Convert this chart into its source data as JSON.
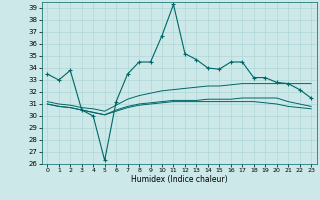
{
  "xlabel": "Humidex (Indice chaleur)",
  "ylabel": "",
  "xlim": [
    -0.5,
    23.5
  ],
  "ylim": [
    26,
    39.5
  ],
  "yticks": [
    26,
    27,
    28,
    29,
    30,
    31,
    32,
    33,
    34,
    35,
    36,
    37,
    38,
    39
  ],
  "xticks": [
    0,
    1,
    2,
    3,
    4,
    5,
    6,
    7,
    8,
    9,
    10,
    11,
    12,
    13,
    14,
    15,
    16,
    17,
    18,
    19,
    20,
    21,
    22,
    23
  ],
  "bg_color": "#cce8e8",
  "line_color": "#006666",
  "grid_color": "#b0d8d8",
  "series": {
    "main": [
      33.5,
      33.0,
      33.8,
      30.5,
      30.0,
      26.3,
      31.2,
      33.5,
      34.5,
      34.5,
      36.7,
      39.3,
      35.2,
      34.7,
      34.0,
      33.9,
      34.5,
      34.5,
      33.2,
      33.2,
      32.8,
      32.7,
      32.2,
      31.5
    ],
    "line2": [
      31.2,
      31.0,
      30.9,
      30.7,
      30.6,
      30.4,
      30.9,
      31.4,
      31.7,
      31.9,
      32.1,
      32.2,
      32.3,
      32.4,
      32.5,
      32.5,
      32.6,
      32.7,
      32.7,
      32.7,
      32.7,
      32.7,
      32.7,
      32.7
    ],
    "line3": [
      31.0,
      30.8,
      30.7,
      30.5,
      30.3,
      30.1,
      30.5,
      30.8,
      31.0,
      31.1,
      31.2,
      31.3,
      31.3,
      31.3,
      31.4,
      31.4,
      31.4,
      31.5,
      31.5,
      31.5,
      31.5,
      31.2,
      31.0,
      30.8
    ],
    "line4": [
      31.0,
      30.8,
      30.7,
      30.5,
      30.3,
      30.1,
      30.4,
      30.7,
      30.9,
      31.0,
      31.1,
      31.2,
      31.2,
      31.2,
      31.2,
      31.2,
      31.2,
      31.2,
      31.2,
      31.1,
      31.0,
      30.8,
      30.7,
      30.6
    ]
  }
}
